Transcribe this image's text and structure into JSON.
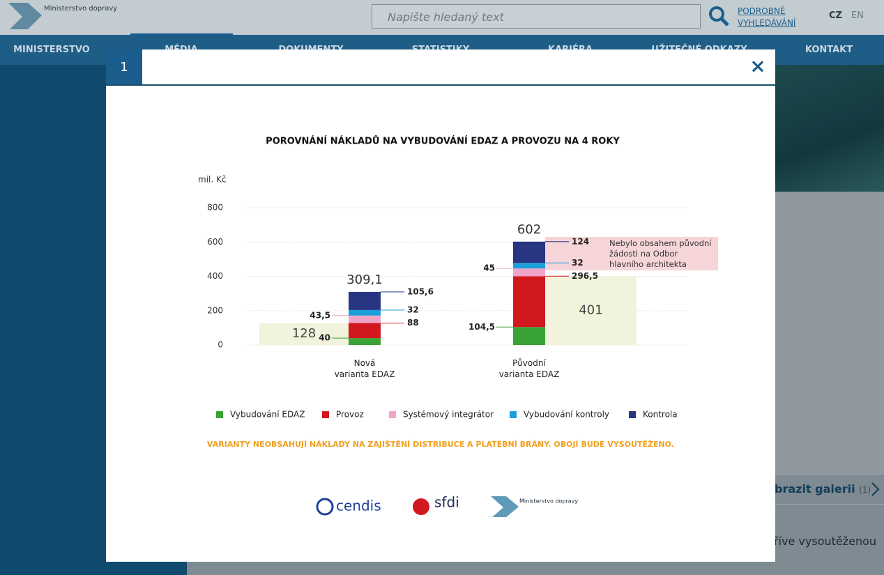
{
  "header": {
    "logo_text": "Ministerstvo dopravy",
    "search_placeholder": "Napište hledaný text",
    "advanced_search": "PODROBNÉ VYHLEDÁVÁNÍ",
    "languages": [
      "CZ",
      "EN"
    ]
  },
  "nav": [
    "MINISTERSTVO",
    "MÉDIA",
    "DOKUMENTY",
    "STATISTIKY",
    "KARIÉRA",
    "UŽITEČNÉ ODKAZY",
    "KONTAKT"
  ],
  "background": {
    "gallery_link": "brazit galerii",
    "gallery_count": "(1)",
    "text_fragment": "říve vysoutěženou"
  },
  "modal": {
    "index": "1",
    "close": "×"
  },
  "chart_data": {
    "type": "stacked_bar",
    "title": "POROVNÁNÍ NÁKLADŮ NA VYBUDOVÁNÍ EDAZ A PROVOZU NA 4 ROKY",
    "y_label": "mil. Kč",
    "categories": [
      "Nová\nvarianta EDAZ",
      "Původní\nvarianta EDAZ"
    ],
    "series": [
      {
        "name": "Vybudování EDAZ",
        "color": "#3aa335",
        "values": [
          40,
          104.5
        ],
        "value_labels": [
          "40",
          "104,5"
        ]
      },
      {
        "name": "Provoz",
        "color": "#d2181f",
        "values": [
          88,
          296.5
        ],
        "value_labels": [
          "88",
          "296,5"
        ]
      },
      {
        "name": "Systémový integrátor",
        "color": "#f0a5c8",
        "values": [
          43.5,
          45
        ],
        "value_labels": [
          "43,5",
          "45"
        ]
      },
      {
        "name": "Vybudování kontroly",
        "color": "#1ba0dc",
        "values": [
          32,
          32
        ]
      },
      {
        "name": "Kontrola",
        "color": "#283582",
        "values": [
          105.6,
          124
        ],
        "value_labels": [
          "105,6",
          "124"
        ]
      }
    ],
    "totals": {
      "values": [
        309.1,
        602
      ],
      "value_labels": [
        "309,1",
        "602"
      ]
    },
    "reference": {
      "color": "#f1f3dc",
      "values": [
        128,
        401
      ]
    },
    "annotation": "Nebylo obsahem původní žádosti na Odbor hlavního architekta",
    "footnote": "VARIANTY NEOBSAHUJÍ NÁKLADY NA ZAJIŠTĚNÍ DISTRIBUCE A PLATEBNÍ BRÁNY. OBOJÍ BUDE VYSOUTĚŽENO.",
    "ylim": [
      0,
      800
    ],
    "yticks": [
      0,
      200,
      400,
      600,
      800
    ],
    "grid": true
  },
  "logos": {
    "cendis": "cendis",
    "sfdi": "sfdi",
    "md": "Ministerstvo dopravy"
  }
}
